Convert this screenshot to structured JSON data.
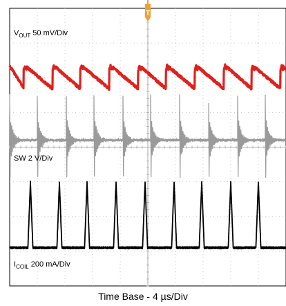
{
  "chart_data": {
    "type": "line",
    "instrument": "oscilloscope",
    "divisions": {
      "x": 10,
      "y": 8
    },
    "grid": true,
    "trigger_marker": {
      "label": "T",
      "color": "#f0a030"
    },
    "channels": [
      {
        "id": "vout",
        "label_main": "V",
        "label_sub": "OUT",
        "label_rest": " 50 mV/Div",
        "color": "#e0201c",
        "waveform": "sawtooth ripple",
        "events_x_div": [
          0.0,
          0.55,
          1.6,
          2.6,
          3.65,
          4.7,
          5.7,
          6.75,
          7.8,
          8.8,
          9.85
        ],
        "center_y_div": 2.0,
        "amplitude_div": 0.35
      },
      {
        "id": "sw",
        "label_main": "SW 2 V/Div",
        "label_sub": "",
        "label_rest": "",
        "color": "#9a9a9a",
        "waveform": "ringing spikes",
        "events_x_div": [
          0.0,
          1.0,
          2.05,
          3.05,
          4.1,
          5.1,
          6.15,
          7.2,
          8.25,
          9.25
        ],
        "center_y_div": 3.8,
        "amplitude_div": 1.3
      },
      {
        "id": "icoil",
        "label_main": "I",
        "label_sub": "COIL",
        "label_rest": " 200 mA/Div",
        "color": "#000000",
        "waveform": "pulses",
        "events_x_div": [
          0.75,
          1.8,
          2.8,
          3.85,
          4.9,
          5.95,
          6.95,
          8.0,
          9.0
        ],
        "center_y_div": 6.9,
        "amplitude_div": 1.9
      }
    ],
    "xlabel": "Time Base - 4 µs/Div"
  }
}
